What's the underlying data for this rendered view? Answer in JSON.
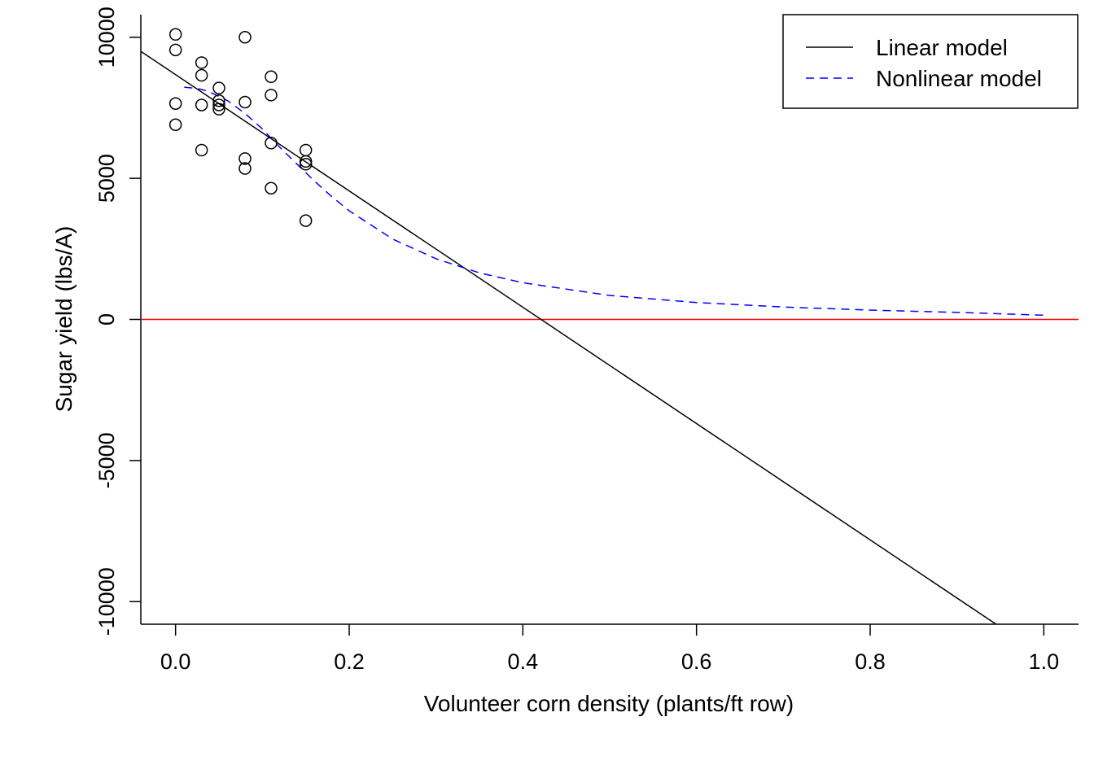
{
  "chart_data": {
    "type": "scatter",
    "title": "",
    "xlabel": "Volunteer corn density (plants/ft row)",
    "ylabel": "Sugar yield (lbs/A)",
    "xlim": [
      -0.04,
      1.04
    ],
    "ylim": [
      -10800,
      10800
    ],
    "x_ticks": [
      0.0,
      0.2,
      0.4,
      0.6,
      0.8,
      1.0
    ],
    "x_tick_labels": [
      "0.0",
      "0.2",
      "0.4",
      "0.6",
      "0.8",
      "1.0"
    ],
    "y_ticks": [
      -10000,
      -5000,
      0,
      5000,
      10000
    ],
    "y_tick_labels": [
      "-10000",
      "-5000",
      "0",
      "5000",
      "10000"
    ],
    "grid": false,
    "points": {
      "x": [
        0,
        0,
        0,
        0,
        0.03,
        0.03,
        0.03,
        0.03,
        0.05,
        0.05,
        0.05,
        0.05,
        0.08,
        0.08,
        0.08,
        0.08,
        0.11,
        0.11,
        0.11,
        0.11,
        0.15,
        0.15,
        0.15,
        0.15
      ],
      "y": [
        10100,
        9550,
        7650,
        6900,
        9100,
        8650,
        7600,
        6000,
        8200,
        7750,
        7600,
        7450,
        10000,
        7700,
        5700,
        5350,
        8600,
        7950,
        6250,
        4650,
        6000,
        5600,
        5500,
        3500
      ]
    },
    "reference_line": {
      "y": 0,
      "color": "#ff0000"
    },
    "series": [
      {
        "name": "Linear model",
        "style": "solid",
        "color": "#000000",
        "x": [
          -0.04,
          0.945
        ],
        "y": [
          9500,
          -10800
        ]
      },
      {
        "name": "Nonlinear model",
        "style": "dashed",
        "color": "#0000ff",
        "x": [
          0.01,
          0.02,
          0.03,
          0.04,
          0.05,
          0.06,
          0.08,
          0.1,
          0.12,
          0.14,
          0.16,
          0.18,
          0.2,
          0.25,
          0.3,
          0.35,
          0.4,
          0.5,
          0.6,
          0.7,
          0.8,
          0.9,
          1.0
        ],
        "y": [
          8230,
          8200,
          8150,
          8050,
          7900,
          7750,
          7300,
          6750,
          6100,
          5500,
          4900,
          4350,
          3850,
          2850,
          2150,
          1650,
          1300,
          850,
          600,
          440,
          330,
          250,
          150
        ]
      }
    ],
    "legend": {
      "position": "top-right",
      "entries": [
        "Linear model",
        "Nonlinear model"
      ]
    }
  }
}
